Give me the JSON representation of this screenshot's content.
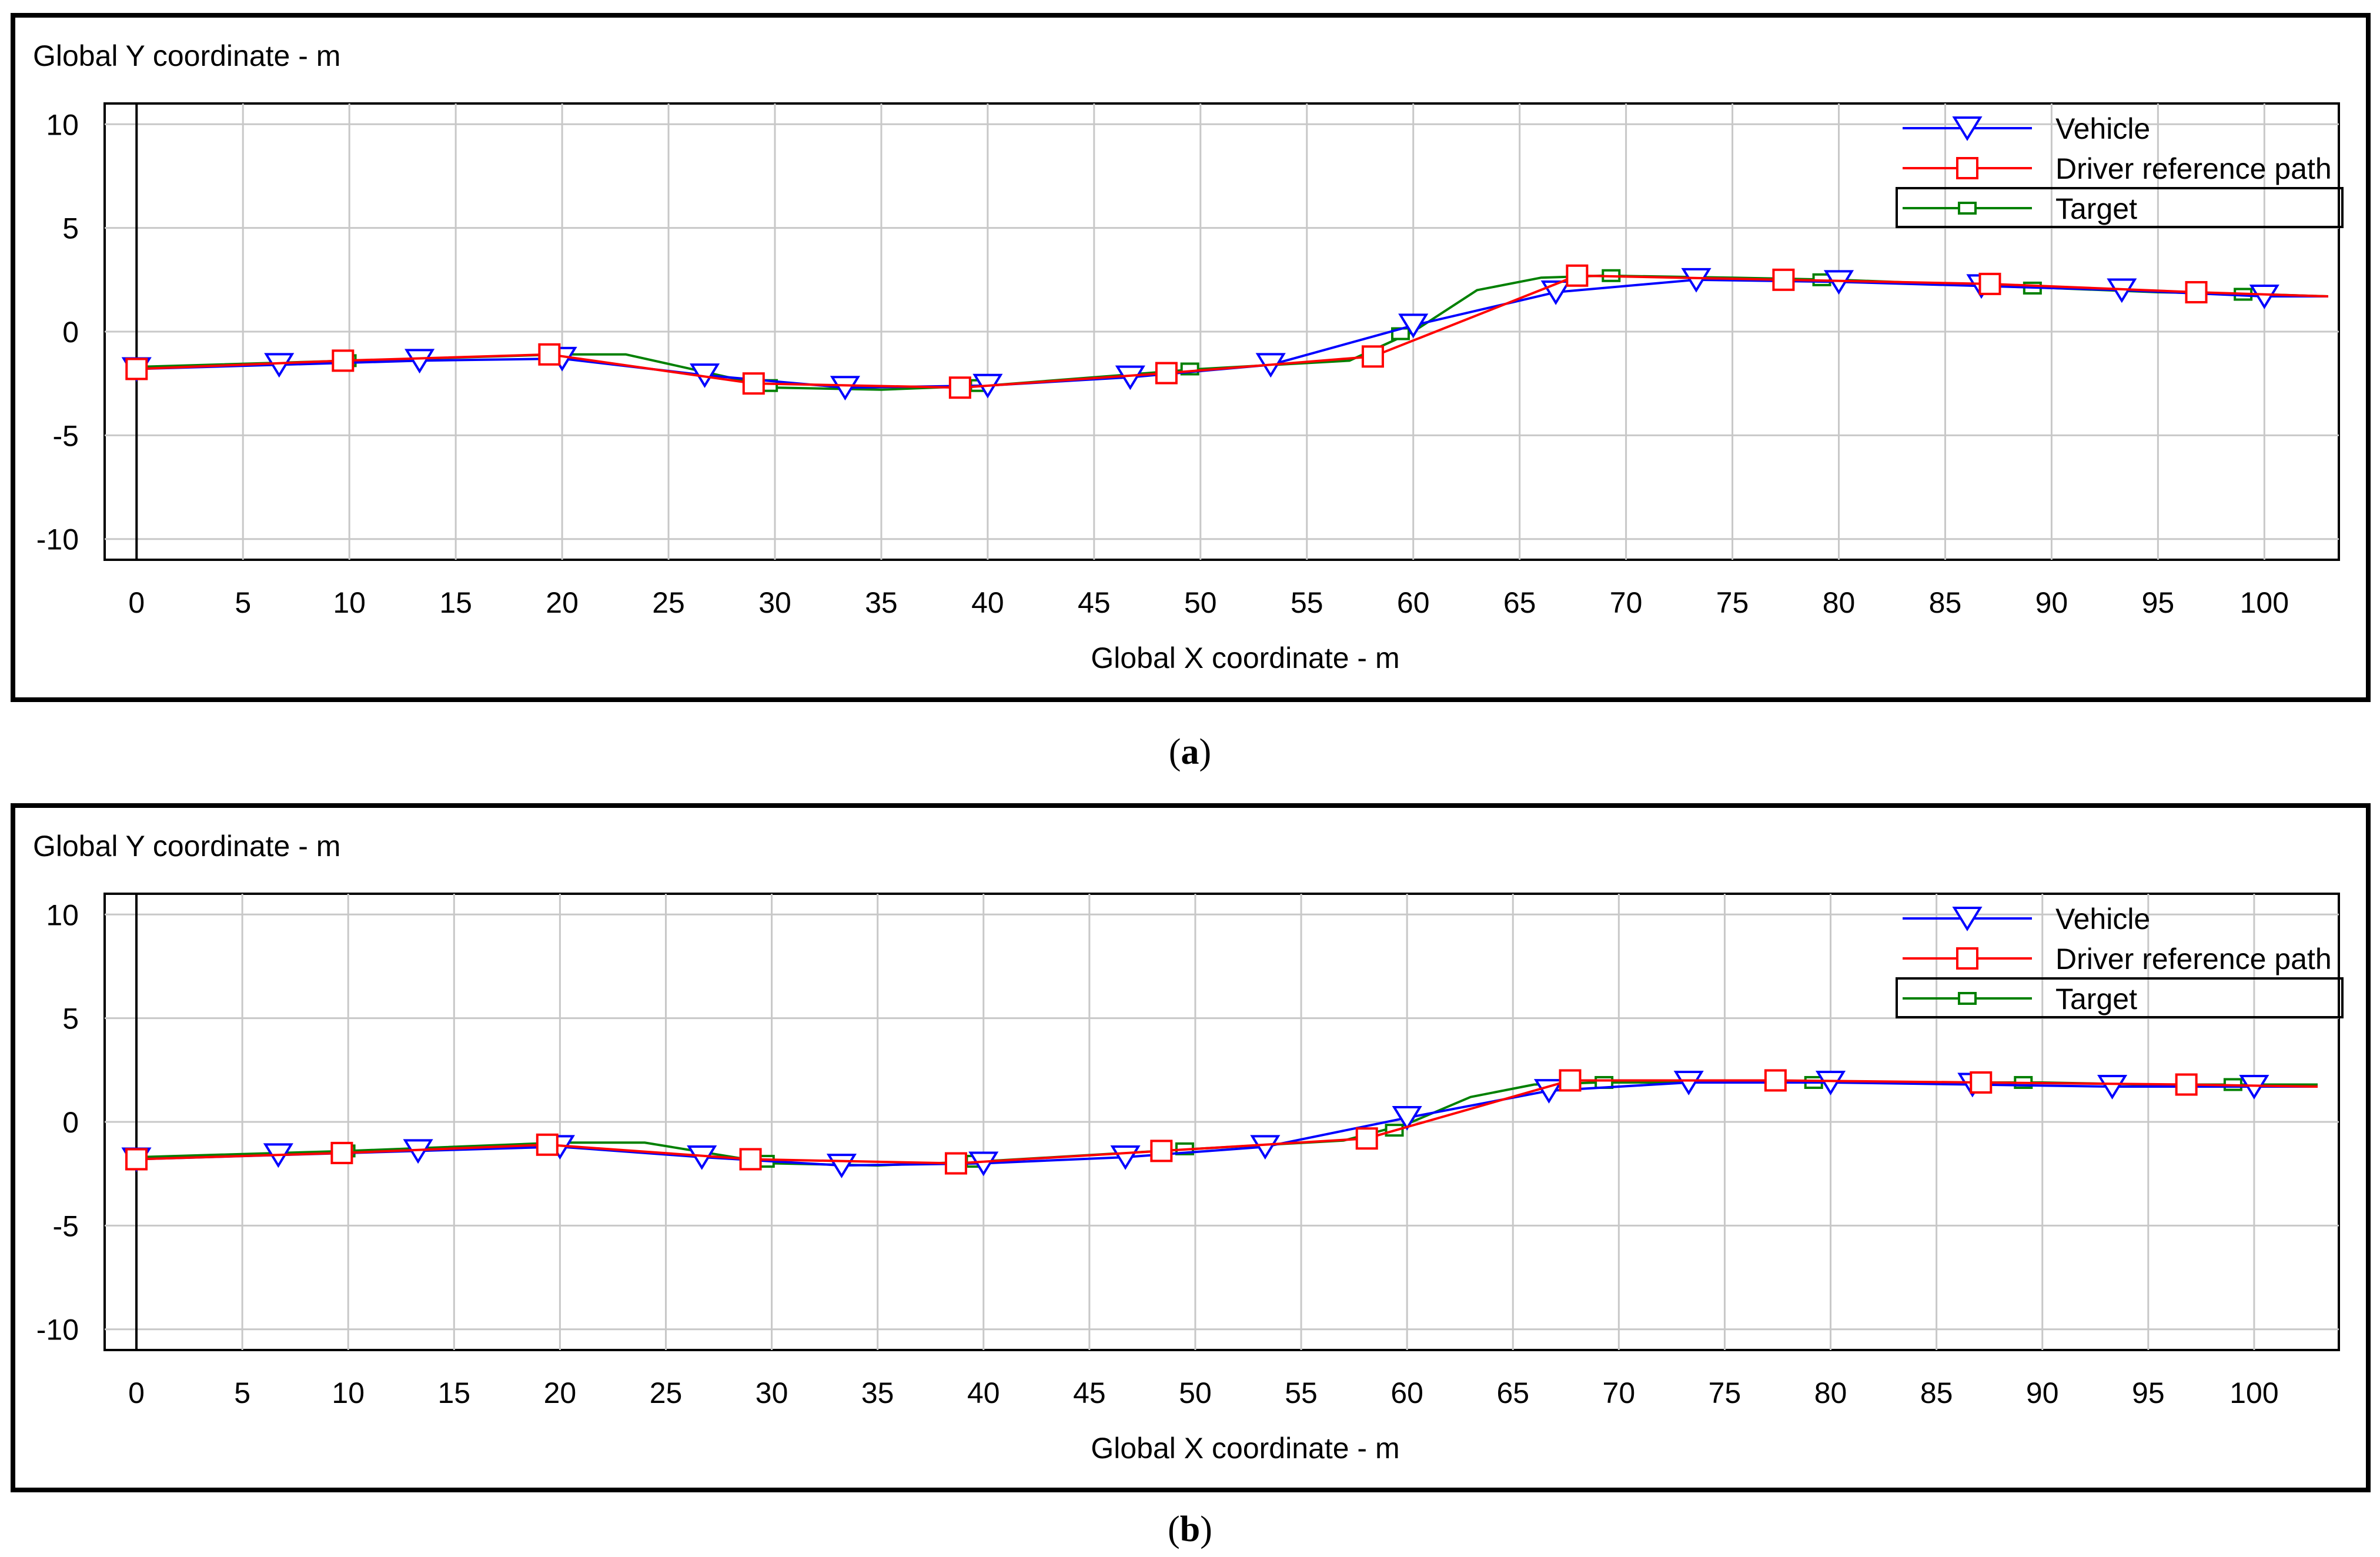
{
  "figure": {
    "captions": [
      "a",
      "b"
    ]
  },
  "colors": {
    "Vehicle": "#0000ff",
    "Driver reference path": "#ff0000",
    "Target": "#008000"
  },
  "chart_data": [
    {
      "type": "line",
      "panel": "a",
      "ylabel": "Global Y coordinate - m",
      "xlabel": "Global X coordinate - m",
      "xlim": [
        -1.5,
        103.5
      ],
      "ylim": [
        -11,
        11
      ],
      "xticks": [
        0,
        5,
        10,
        15,
        20,
        25,
        30,
        35,
        40,
        45,
        50,
        55,
        60,
        65,
        70,
        75,
        80,
        85,
        90,
        95,
        100
      ],
      "yticks": [
        10,
        5,
        0,
        -5,
        -10
      ],
      "grid": true,
      "legend": {
        "position": "top-right",
        "entries": [
          "Vehicle",
          "Driver reference path",
          "Target"
        ]
      },
      "series": [
        {
          "name": "Vehicle",
          "marker": "triangle-down",
          "x": [
            0,
            6.7,
            13.3,
            20,
            26.7,
            33.3,
            40,
            46.7,
            53.3,
            60,
            66.7,
            73.3,
            80,
            86.7,
            93.3,
            100,
            103
          ],
          "y": [
            -1.8,
            -1.6,
            -1.4,
            -1.3,
            -2.1,
            -2.7,
            -2.6,
            -2.2,
            -1.6,
            0.3,
            1.9,
            2.5,
            2.4,
            2.2,
            2.0,
            1.7,
            1.7
          ],
          "markers_x": [
            0,
            6.7,
            13.3,
            20,
            26.7,
            33.3,
            40,
            46.7,
            53.3,
            60,
            66.7,
            73.3,
            80,
            86.7,
            93.3,
            100
          ],
          "markers_y": [
            -1.8,
            -1.6,
            -1.4,
            -1.3,
            -2.1,
            -2.7,
            -2.6,
            -2.2,
            -1.6,
            0.3,
            1.9,
            2.5,
            2.4,
            2.2,
            2.0,
            1.7
          ]
        },
        {
          "name": "Driver reference path",
          "marker": "square",
          "x": [
            0,
            9.7,
            19.4,
            29,
            38.7,
            48.4,
            58.1,
            67.7,
            77.4,
            87.1,
            96.8,
            103
          ],
          "y": [
            -1.8,
            -1.4,
            -1.1,
            -2.5,
            -2.7,
            -2.0,
            -1.2,
            2.7,
            2.5,
            2.3,
            1.9,
            1.7
          ],
          "markers_x": [
            0,
            9.7,
            19.4,
            29,
            38.7,
            48.4,
            58.1,
            67.7,
            77.4,
            87.1,
            96.8
          ],
          "markers_y": [
            -1.8,
            -1.4,
            -1.1,
            -2.5,
            -2.7,
            -2.0,
            -1.2,
            2.7,
            2.5,
            2.3,
            1.9
          ]
        },
        {
          "name": "Target",
          "marker": "small-square",
          "x": [
            0,
            10,
            20,
            23,
            30,
            35,
            40,
            50,
            57,
            60,
            63,
            66,
            69,
            75,
            80,
            85,
            90,
            95,
            100,
            103
          ],
          "y": [
            -1.7,
            -1.4,
            -1.1,
            -1.1,
            -2.7,
            -2.8,
            -2.6,
            -1.8,
            -1.4,
            0,
            2.0,
            2.6,
            2.7,
            2.6,
            2.5,
            2.3,
            2.1,
            1.9,
            1.8,
            1.7
          ],
          "markers_x": [
            0,
            9.9,
            19.8,
            29.7,
            39.6,
            49.5,
            59.4,
            69.3,
            79.2,
            89.1,
            99
          ],
          "markers_y": [
            -1.7,
            -1.4,
            -1.1,
            -2.6,
            -2.6,
            -1.8,
            -0.1,
            2.7,
            2.5,
            2.1,
            1.8
          ]
        }
      ]
    },
    {
      "type": "line",
      "panel": "b",
      "ylabel": "Global Y coordinate - m",
      "xlabel": "Global X coordinate - m",
      "xlim": [
        -1.5,
        104
      ],
      "ylim": [
        -11,
        11
      ],
      "xticks": [
        0,
        5,
        10,
        15,
        20,
        25,
        30,
        35,
        40,
        45,
        50,
        55,
        60,
        65,
        70,
        75,
        80,
        85,
        90,
        95,
        100
      ],
      "yticks": [
        10,
        5,
        0,
        -5,
        -10
      ],
      "grid": true,
      "legend": {
        "position": "top-right",
        "entries": [
          "Vehicle",
          "Driver reference path",
          "Target"
        ]
      },
      "series": [
        {
          "name": "Vehicle",
          "marker": "triangle-down",
          "x": [
            0,
            6.7,
            13.3,
            20,
            26.7,
            33.3,
            40,
            46.7,
            53.3,
            60,
            66.7,
            73.3,
            80,
            86.7,
            93.3,
            100,
            103
          ],
          "y": [
            -1.8,
            -1.6,
            -1.4,
            -1.2,
            -1.7,
            -2.1,
            -2.0,
            -1.7,
            -1.2,
            0.2,
            1.5,
            1.9,
            1.9,
            1.8,
            1.7,
            1.7,
            1.7
          ],
          "markers_x": [
            0,
            6.7,
            13.3,
            20,
            26.7,
            33.3,
            40,
            46.7,
            53.3,
            60,
            66.7,
            73.3,
            80,
            86.7,
            93.3,
            100
          ],
          "markers_y": [
            -1.8,
            -1.6,
            -1.4,
            -1.2,
            -1.7,
            -2.1,
            -2.0,
            -1.7,
            -1.2,
            0.2,
            1.5,
            1.9,
            1.9,
            1.8,
            1.7,
            1.7
          ]
        },
        {
          "name": "Driver reference path",
          "marker": "square",
          "x": [
            0,
            9.7,
            19.4,
            29,
            38.7,
            48.4,
            58.1,
            67.7,
            77.4,
            87.1,
            96.8,
            103
          ],
          "y": [
            -1.8,
            -1.5,
            -1.1,
            -1.8,
            -2.0,
            -1.4,
            -0.8,
            2.0,
            2.0,
            1.9,
            1.8,
            1.7
          ],
          "markers_x": [
            0,
            9.7,
            19.4,
            29,
            38.7,
            48.4,
            58.1,
            67.7,
            77.4,
            87.1,
            96.8
          ],
          "markers_y": [
            -1.8,
            -1.5,
            -1.1,
            -1.8,
            -2.0,
            -1.4,
            -0.8,
            2.0,
            2.0,
            1.9,
            1.8
          ]
        },
        {
          "name": "Target",
          "marker": "small-square",
          "x": [
            0,
            10,
            20,
            24,
            30,
            35,
            40,
            50,
            57,
            60,
            63,
            66,
            69,
            75,
            80,
            85,
            90,
            95,
            100,
            103
          ],
          "y": [
            -1.7,
            -1.4,
            -1.0,
            -1.0,
            -2.0,
            -2.1,
            -1.9,
            -1.3,
            -0.9,
            -0.1,
            1.2,
            1.8,
            1.9,
            1.9,
            1.9,
            1.9,
            1.9,
            1.8,
            1.8,
            1.8
          ],
          "markers_x": [
            0,
            9.9,
            19.8,
            29.7,
            39.6,
            49.5,
            59.4,
            69.3,
            79.2,
            89.1,
            99
          ],
          "markers_y": [
            -1.7,
            -1.4,
            -1.0,
            -1.9,
            -1.9,
            -1.3,
            -0.4,
            1.9,
            1.9,
            1.9,
            1.8
          ]
        }
      ]
    }
  ]
}
